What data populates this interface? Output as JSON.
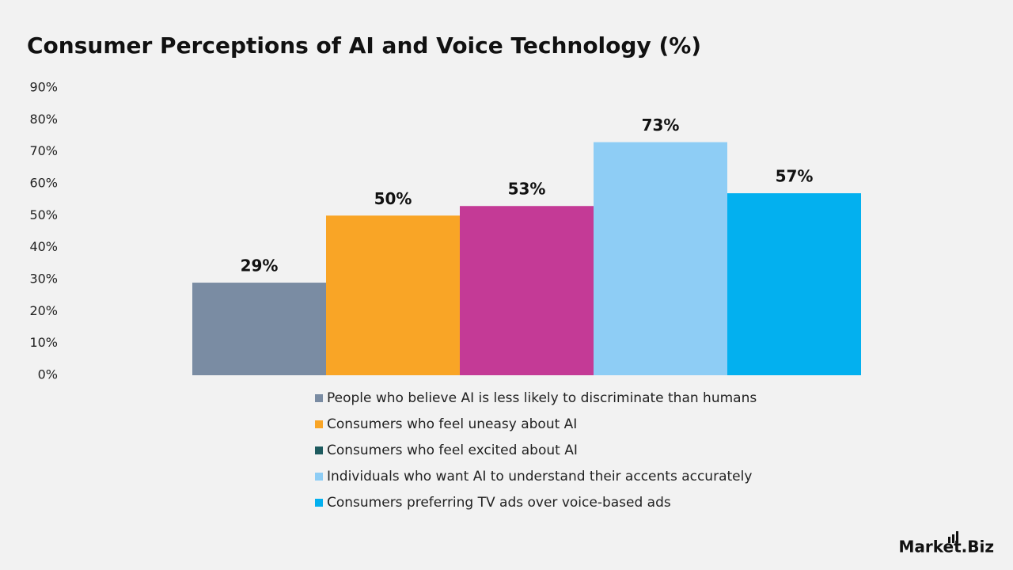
{
  "chart_data": {
    "type": "bar",
    "title": "Consumer Perceptions of AI and Voice Technology (%)",
    "categories": [
      "People who believe AI is less likely to discriminate than humans",
      "Consumers who feel uneasy about AI",
      "Consumers who feel excited about AI",
      "Individuals who want AI to understand their accents accurately",
      "Consumers preferring TV ads over voice-based ads"
    ],
    "values": [
      29,
      50,
      53,
      73,
      57
    ],
    "value_labels": [
      "29%",
      "50%",
      "53%",
      "73%",
      "57%"
    ],
    "colors": [
      "#7a8ca3",
      "#f9a526",
      "#c43a96",
      "#8ecdf5",
      "#03b0ef"
    ],
    "legend_colors": [
      "#7a8ca3",
      "#f9a526",
      "#1e5b5f",
      "#8ecdf5",
      "#03b0ef"
    ],
    "ylim": [
      0,
      90
    ],
    "yticks": [
      {
        "value": 0,
        "label": "0%"
      },
      {
        "value": 10,
        "label": "10%"
      },
      {
        "value": 20,
        "label": "20%"
      },
      {
        "value": 30,
        "label": "30%"
      },
      {
        "value": 40,
        "label": "40%"
      },
      {
        "value": 50,
        "label": "50%"
      },
      {
        "value": 60,
        "label": "60%"
      },
      {
        "value": 70,
        "label": "70%"
      },
      {
        "value": 80,
        "label": "80%"
      },
      {
        "value": 90,
        "label": "90%"
      }
    ],
    "grid": false
  },
  "brand": "Market.Biz"
}
